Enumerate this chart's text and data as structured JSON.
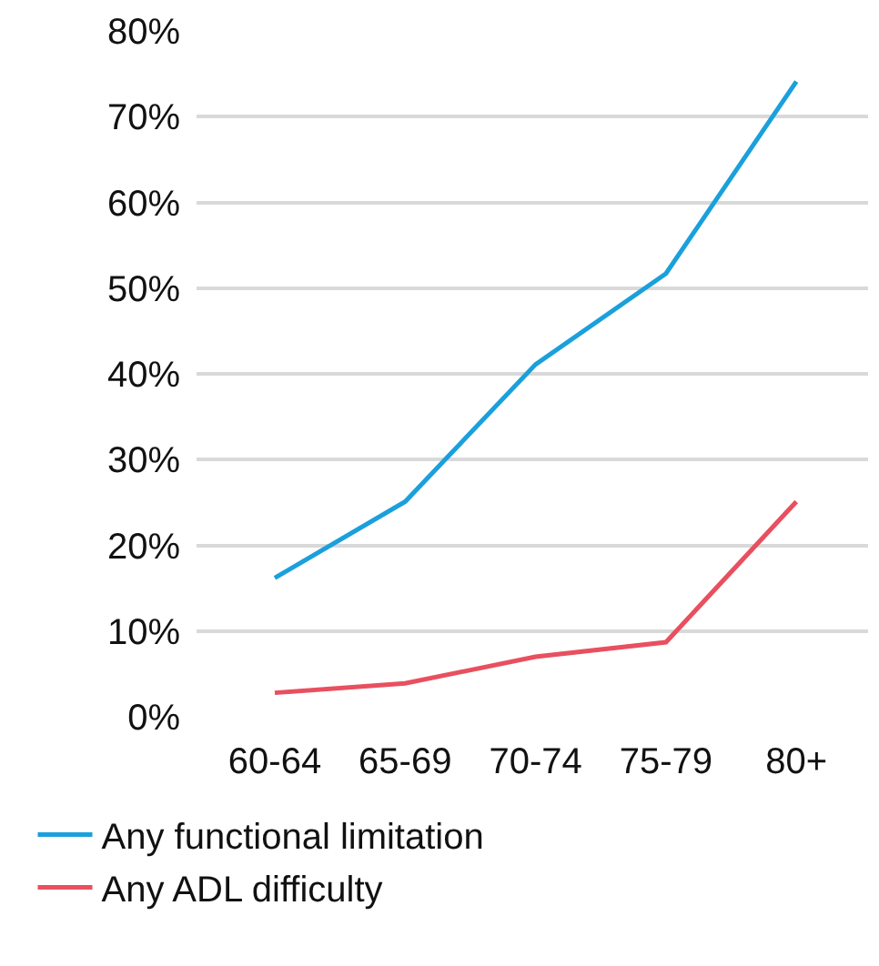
{
  "chart_data": {
    "type": "line",
    "categories": [
      "60-64",
      "65-69",
      "70-74",
      "75-79",
      "80+"
    ],
    "series": [
      {
        "name": "Any functional limitation",
        "color": "#1aa0dc",
        "values": [
          16.2,
          25.1,
          41.1,
          51.7,
          74.1
        ]
      },
      {
        "name": "Any ADL difficulty",
        "color": "#e8505f",
        "values": [
          2.8,
          3.9,
          7.0,
          8.7,
          25.1
        ]
      }
    ],
    "ylim": [
      0,
      80
    ],
    "yticks": [
      {
        "value": 0,
        "label": "0%"
      },
      {
        "value": 10,
        "label": "10%"
      },
      {
        "value": 20,
        "label": "20%"
      },
      {
        "value": 30,
        "label": "30%"
      },
      {
        "value": 40,
        "label": "40%"
      },
      {
        "value": 50,
        "label": "50%"
      },
      {
        "value": 60,
        "label": "60%"
      },
      {
        "value": 70,
        "label": "70%"
      },
      {
        "value": 80,
        "label": "80%"
      }
    ],
    "grid": "y",
    "legend": "bottom left",
    "marker": "none",
    "line_style": "solid"
  }
}
